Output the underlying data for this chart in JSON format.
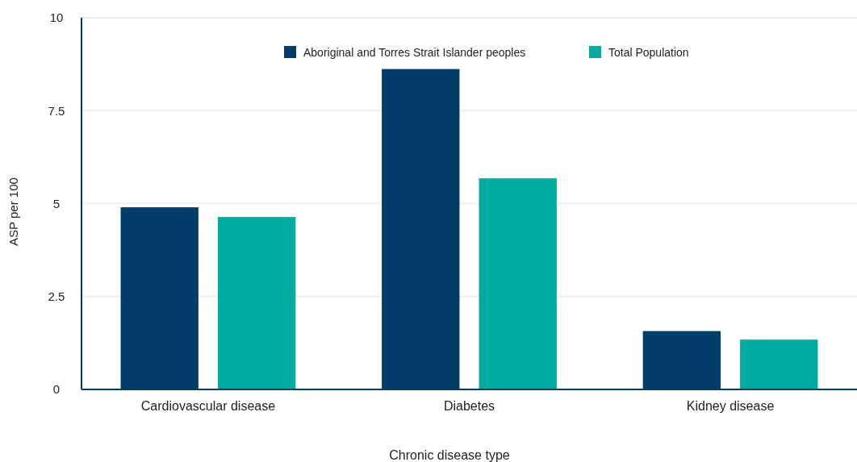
{
  "chart_data": {
    "type": "bar",
    "xlabel": "Chronic disease type",
    "ylabel": "ASP per 100",
    "categories": [
      "Cardiovascular disease",
      "Diabetes",
      "Kidney disease"
    ],
    "series": [
      {
        "name": "Aboriginal and Torres Strait Islander peoples",
        "color": "#003e69",
        "values": [
          4.9,
          8.62,
          1.57
        ]
      },
      {
        "name": "Total Population",
        "color": "#00ab9f",
        "values": [
          4.64,
          5.68,
          1.34
        ]
      }
    ],
    "ylim": [
      0,
      10
    ],
    "yticks": [
      0,
      2.5,
      5,
      7.5,
      10
    ],
    "grid": "y",
    "legend": "top"
  }
}
